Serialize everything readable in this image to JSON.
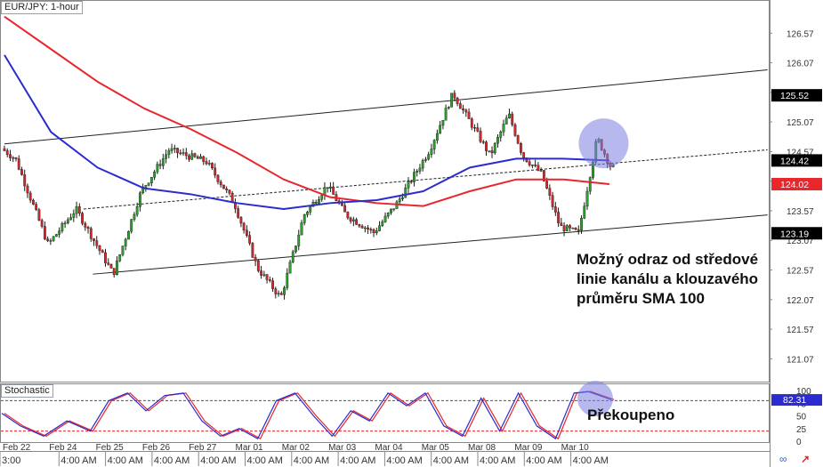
{
  "chart_data": {
    "type": "candlestick",
    "pair_label": "EUR/JPY: 1-hour",
    "indicator_label": "Stochastic",
    "ylim": [
      120.7,
      127.1
    ],
    "y_ticks": [
      "126.57",
      "126.07",
      "125.57",
      "125.07",
      "124.57",
      "124.07",
      "123.57",
      "123.07",
      "122.57",
      "122.07",
      "121.57",
      "121.07"
    ],
    "price_badges": [
      {
        "value": "125.52",
        "color": "#000000"
      },
      {
        "value": "124.42",
        "color": "#000000"
      },
      {
        "value": "124.02",
        "color": "#e8262b"
      },
      {
        "value": "123.19",
        "color": "#000000"
      }
    ],
    "date_labels": [
      "Feb 22",
      "Feb 24",
      "Feb 25",
      "Feb 26",
      "Feb 27",
      "Mar 01",
      "Mar 02",
      "Mar 03",
      "Mar 04",
      "Mar 05",
      "Mar 08",
      "Mar 09",
      "Mar 10"
    ],
    "time_labels": [
      "3:00",
      "4:00 AM",
      "4:00 AM",
      "4:00 AM",
      "4:00 AM",
      "4:00 AM",
      "4:00 AM",
      "4:00 AM",
      "4:00 AM",
      "4:00 AM",
      "4:00 AM",
      "4:00 AM",
      "4:00 AM"
    ],
    "price_path": [
      [
        0,
        124.62
      ],
      [
        0.3,
        124.45
      ],
      [
        1.0,
        123.0
      ],
      [
        1.6,
        123.6
      ],
      [
        2.4,
        122.5
      ],
      [
        3.0,
        123.9
      ],
      [
        3.6,
        124.6
      ],
      [
        4.4,
        124.4
      ],
      [
        5.0,
        123.7
      ],
      [
        5.5,
        122.6
      ],
      [
        6.0,
        122.1
      ],
      [
        6.5,
        123.5
      ],
      [
        7.0,
        124.0
      ],
      [
        7.4,
        123.5
      ],
      [
        8.0,
        123.2
      ],
      [
        8.5,
        123.7
      ],
      [
        9.2,
        124.6
      ],
      [
        9.7,
        125.55
      ],
      [
        10.2,
        124.9
      ],
      [
        10.5,
        124.5
      ],
      [
        10.9,
        125.2
      ],
      [
        11.2,
        124.5
      ],
      [
        11.6,
        124.2
      ],
      [
        12.0,
        123.3
      ],
      [
        12.4,
        123.2
      ],
      [
        12.8,
        124.8
      ],
      [
        13.1,
        124.3
      ]
    ],
    "sma_red": [
      [
        0,
        126.85
      ],
      [
        1.0,
        126.3
      ],
      [
        2.0,
        125.75
      ],
      [
        3.0,
        125.3
      ],
      [
        4.0,
        124.95
      ],
      [
        5.0,
        124.55
      ],
      [
        6.0,
        124.1
      ],
      [
        7.0,
        123.8
      ],
      [
        8.0,
        123.7
      ],
      [
        9.0,
        123.65
      ],
      [
        10.0,
        123.9
      ],
      [
        11.0,
        124.1
      ],
      [
        12.0,
        124.1
      ],
      [
        13.0,
        124.02
      ]
    ],
    "sma_blue": [
      [
        0,
        126.2
      ],
      [
        1.0,
        124.9
      ],
      [
        2.0,
        124.3
      ],
      [
        3.0,
        123.95
      ],
      [
        4.0,
        123.85
      ],
      [
        5.0,
        123.7
      ],
      [
        6.0,
        123.6
      ],
      [
        7.0,
        123.7
      ],
      [
        8.0,
        123.75
      ],
      [
        9.0,
        123.9
      ],
      [
        10.0,
        124.3
      ],
      [
        11.0,
        124.45
      ],
      [
        12.0,
        124.45
      ],
      [
        13.0,
        124.42
      ]
    ],
    "channel_upper": [
      [
        0,
        124.7
      ],
      [
        16.4,
        125.95
      ]
    ],
    "channel_middle": [
      [
        1.7,
        123.6
      ],
      [
        16.4,
        124.6
      ]
    ],
    "channel_lower": [
      [
        1.9,
        122.5
      ],
      [
        16.4,
        123.5
      ]
    ],
    "stochastic": {
      "levels": [
        "100",
        "75",
        "50",
        "25",
        "0"
      ],
      "overbought": 80,
      "oversold": 20,
      "current": "82.31",
      "k": [
        [
          0,
          55
        ],
        [
          0.4,
          30
        ],
        [
          0.9,
          10
        ],
        [
          1.4,
          40
        ],
        [
          1.9,
          20
        ],
        [
          2.3,
          80
        ],
        [
          2.7,
          95
        ],
        [
          3.1,
          60
        ],
        [
          3.5,
          90
        ],
        [
          3.9,
          95
        ],
        [
          4.3,
          40
        ],
        [
          4.7,
          10
        ],
        [
          5.1,
          25
        ],
        [
          5.5,
          5
        ],
        [
          5.9,
          80
        ],
        [
          6.3,
          95
        ],
        [
          6.7,
          50
        ],
        [
          7.1,
          10
        ],
        [
          7.5,
          60
        ],
        [
          7.9,
          40
        ],
        [
          8.3,
          95
        ],
        [
          8.7,
          70
        ],
        [
          9.1,
          95
        ],
        [
          9.5,
          30
        ],
        [
          9.9,
          10
        ],
        [
          10.3,
          85
        ],
        [
          10.7,
          20
        ],
        [
          11.1,
          95
        ],
        [
          11.5,
          30
        ],
        [
          11.9,
          5
        ],
        [
          12.3,
          95
        ],
        [
          12.6,
          98
        ],
        [
          13.1,
          82
        ]
      ]
    },
    "annotations": {
      "main": "Možný odraz od středové linie kanálu a klouzavého průměru SMA 100",
      "stochastic": "Překoupeno"
    },
    "colors": {
      "candle_up": "#2ca02c",
      "candle_down": "#d62728",
      "sma_red": "#e8262b",
      "sma_blue": "#2b2bcf",
      "highlight": "#7b7fe0"
    },
    "grid": false
  },
  "icons": [
    "link-icon",
    "arrow-icon"
  ]
}
